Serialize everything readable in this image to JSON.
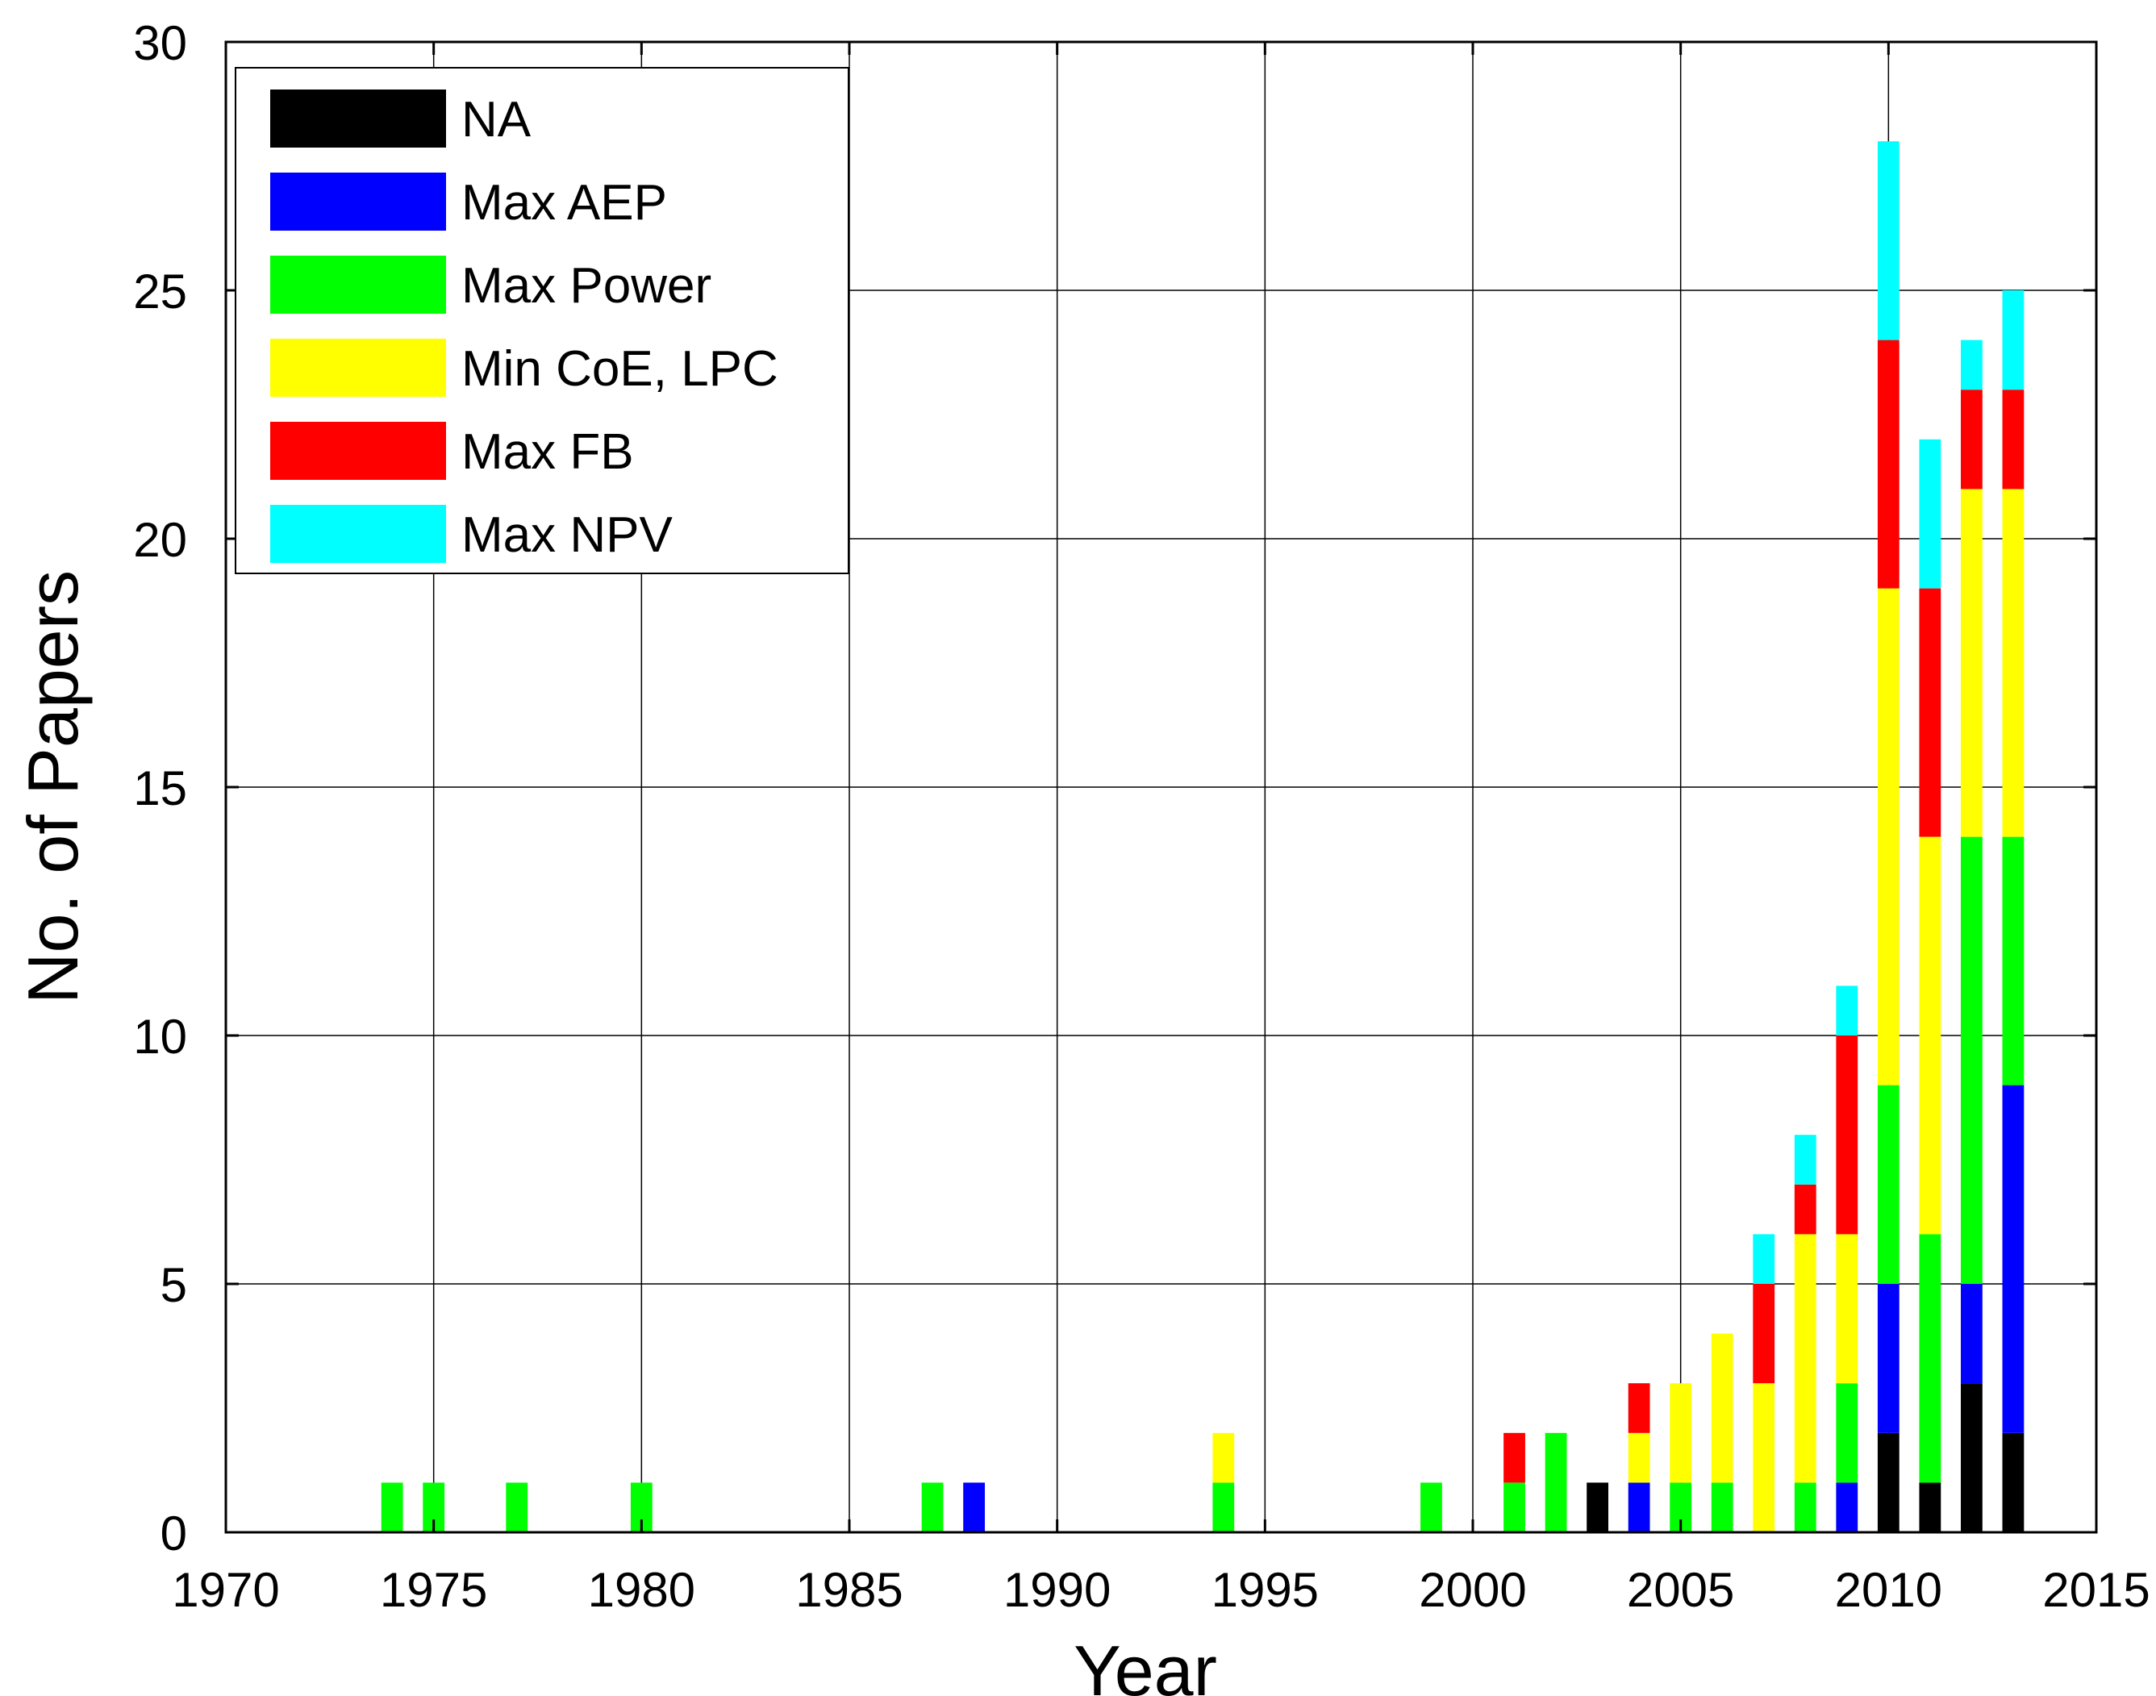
{
  "chart_data": {
    "type": "bar",
    "stacked": true,
    "title": "",
    "xlabel": "Year",
    "ylabel": "No. of Papers",
    "xlim": [
      1970,
      2015
    ],
    "ylim": [
      0,
      30
    ],
    "x_ticks": [
      1970,
      1975,
      1980,
      1985,
      1990,
      1995,
      2000,
      2005,
      2010,
      2015
    ],
    "y_ticks": [
      0,
      5,
      10,
      15,
      20,
      25,
      30
    ],
    "grid": true,
    "legend_position": "top-left",
    "x": [
      1974,
      1975,
      1977,
      1980,
      1987,
      1988,
      1994,
      1999,
      2001,
      2002,
      2003,
      2004,
      2005,
      2006,
      2007,
      2008,
      2009,
      2010,
      2011,
      2012,
      2013
    ],
    "series": [
      {
        "name": "NA",
        "color": "#000000",
        "values": [
          0,
          0,
          0,
          0,
          0,
          0,
          0,
          0,
          0,
          0,
          1,
          0,
          0,
          0,
          0,
          0,
          0,
          2,
          1,
          3,
          2
        ]
      },
      {
        "name": "Max AEP",
        "color": "#0000ff",
        "values": [
          0,
          0,
          0,
          0,
          0,
          1,
          0,
          0,
          0,
          0,
          0,
          1,
          0,
          0,
          0,
          0,
          1,
          3,
          0,
          2,
          7
        ]
      },
      {
        "name": "Max Power",
        "color": "#00ff00",
        "values": [
          1,
          1,
          1,
          1,
          1,
          0,
          1,
          1,
          1,
          2,
          0,
          0,
          1,
          1,
          0,
          1,
          2,
          4,
          5,
          9,
          5
        ]
      },
      {
        "name": "Min CoE, LPC",
        "color": "#ffff00",
        "values": [
          0,
          0,
          0,
          0,
          0,
          0,
          1,
          0,
          0,
          0,
          0,
          1,
          2,
          3,
          3,
          5,
          3,
          10,
          8,
          7,
          7
        ]
      },
      {
        "name": "Max FB",
        "color": "#ff0000",
        "values": [
          0,
          0,
          0,
          0,
          0,
          0,
          0,
          0,
          1,
          0,
          0,
          1,
          0,
          0,
          2,
          1,
          4,
          5,
          5,
          2,
          2
        ]
      },
      {
        "name": "Max NPV",
        "color": "#00ffff",
        "values": [
          0,
          0,
          0,
          0,
          0,
          0,
          0,
          0,
          0,
          0,
          0,
          0,
          0,
          0,
          1,
          1,
          1,
          4,
          3,
          1,
          2
        ]
      }
    ]
  }
}
